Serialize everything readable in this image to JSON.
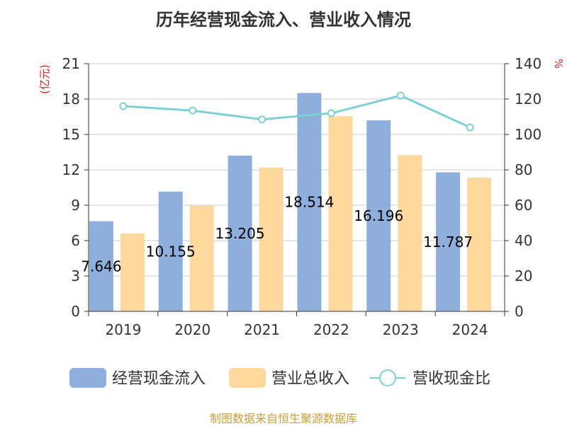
{
  "chart_data": {
    "type": "bar",
    "title": "历年经营现金流入、营业收入情况",
    "categories": [
      "2019",
      "2020",
      "2021",
      "2022",
      "2023",
      "2024"
    ],
    "left_axis": {
      "unit": "(亿元)",
      "min": 0,
      "max": 21,
      "step": 3,
      "ticks": [
        "0",
        "3",
        "6",
        "9",
        "12",
        "15",
        "18",
        "21"
      ]
    },
    "right_axis": {
      "unit": "%",
      "min": 0,
      "max": 140,
      "step": 20,
      "ticks": [
        "0",
        "20",
        "40",
        "60",
        "80",
        "100",
        "120",
        "140"
      ]
    },
    "series": [
      {
        "name": "经营现金流入",
        "type": "bar",
        "axis": "left",
        "color": "#8eaedb",
        "values": [
          7.646,
          10.155,
          13.205,
          18.514,
          16.196,
          11.787
        ],
        "labels": [
          "7.646",
          "10.155",
          "13.205",
          "18.514",
          "16.196",
          "11.787"
        ]
      },
      {
        "name": "营业总收入",
        "type": "bar",
        "axis": "left",
        "color": "#fed89c",
        "values": [
          6.6,
          8.95,
          12.2,
          16.55,
          13.25,
          11.35
        ]
      },
      {
        "name": "营收现金比",
        "type": "line",
        "axis": "right",
        "color": "#7fd0d4",
        "values": [
          116,
          113.5,
          108.5,
          112,
          122,
          104
        ]
      }
    ],
    "grid": true,
    "legend": "bottom"
  },
  "footer": {
    "source": "制图数据来自恒生聚源数据库"
  },
  "colors": {
    "unit_left": "#dd2222",
    "unit_right": "#dd2222",
    "source": "#c8a038",
    "axis": "#333333",
    "grid": "#cccccc"
  }
}
